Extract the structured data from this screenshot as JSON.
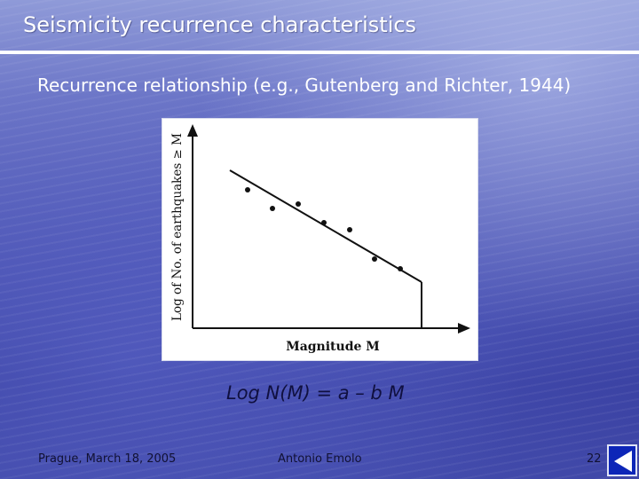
{
  "slide": {
    "title": "Seismicity recurrence characteristics",
    "subtitle": "Recurrence relationship (e.g., Gutenberg and Richter, 1944)",
    "equation": "Log N(M) = a – b M"
  },
  "figure": {
    "ylabel": "Log of No. of earthquakes ≥ M",
    "xlabel": "Magnitude M"
  },
  "footer": {
    "left": "Prague, March 18, 2005",
    "center": "Antonio Emolo",
    "page_number": "22"
  },
  "nav": {
    "icon": "back-arrow-icon"
  },
  "colors": {
    "title_rule": "#ffffff",
    "nav_button": "#0d26b8",
    "figure_ink": "#111111"
  }
}
